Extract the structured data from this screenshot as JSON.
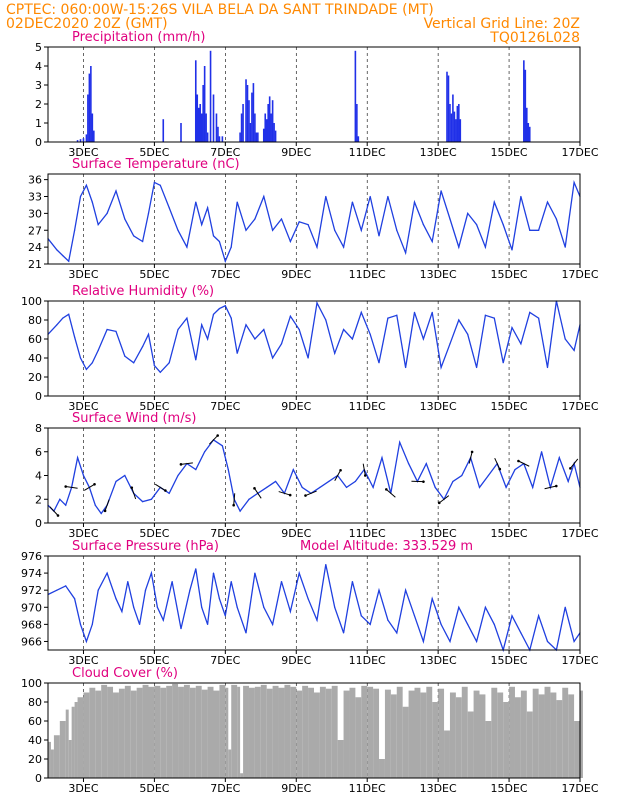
{
  "header": {
    "line1_left": "CPTEC:    060:00W-15:26S   VILA BELA DA SANT TRINDADE (MT)",
    "line2_left": "02DEC2020  20Z (GMT)",
    "line2_right": "Vertical Grid Line: 20Z",
    "line3_right": "TQ0126L028"
  },
  "colors": {
    "header_text": "#ff8800",
    "panel_title": "#e0007f",
    "series_line": "#2040e0",
    "precip_bars": "#2030e8",
    "cloud_fill": "#aaaaaa"
  },
  "x_axis": {
    "unit": "hours since start (02DEC 20Z)",
    "range": [
      0,
      360
    ],
    "tick_labels": [
      "3DEC",
      "5DEC",
      "7DEC",
      "9DEC",
      "11DEC",
      "13DEC",
      "15DEC",
      "17DEC"
    ],
    "tick_hours": [
      24,
      72,
      120,
      168,
      216,
      264,
      312,
      360
    ]
  },
  "chart_data": [
    {
      "type": "bar",
      "title": "Precipitation (mm/h)",
      "ylim": [
        0,
        5
      ],
      "yticks": [
        0,
        1,
        2,
        3,
        4,
        5
      ],
      "x": [
        20,
        22,
        24,
        26,
        27,
        28,
        29,
        30,
        31,
        78,
        90,
        100,
        101,
        102,
        103,
        104,
        105,
        106,
        107,
        108,
        110,
        112,
        114,
        115,
        116,
        118,
        130,
        131,
        132,
        134,
        135,
        136,
        137,
        138,
        139,
        140,
        141,
        142,
        146,
        147,
        148,
        149,
        150,
        151,
        152,
        153,
        154,
        208,
        209,
        210,
        270,
        271,
        272,
        273,
        274,
        275,
        276,
        277,
        278,
        279,
        322,
        323,
        324,
        325,
        326
      ],
      "values": [
        0.1,
        0.15,
        0.2,
        0.4,
        2.5,
        3.6,
        4.0,
        1.5,
        0.6,
        1.2,
        1.0,
        4.3,
        2.5,
        1.8,
        2.0,
        1.5,
        3.0,
        4.0,
        1.5,
        0.5,
        4.8,
        2.5,
        1.5,
        0.8,
        0.3,
        0.3,
        0.5,
        1.5,
        2.0,
        3.3,
        3.0,
        2.2,
        1.0,
        2.6,
        3.1,
        1.5,
        0.5,
        0.5,
        0.7,
        1.5,
        1.2,
        2.0,
        2.4,
        1.5,
        2.2,
        1.0,
        0.6,
        4.8,
        2.0,
        0.3,
        3.7,
        3.5,
        2.0,
        1.5,
        2.5,
        1.6,
        1.2,
        1.9,
        2.0,
        1.2,
        4.3,
        3.8,
        1.8,
        1.0,
        0.8
      ]
    },
    {
      "type": "line",
      "title": "Surface Temperature (nC)",
      "ylim": [
        21,
        37
      ],
      "yticks": [
        21,
        24,
        27,
        30,
        33,
        36
      ],
      "x": [
        0,
        6,
        10,
        14,
        18,
        22,
        26,
        30,
        34,
        40,
        46,
        52,
        58,
        64,
        68,
        72,
        76,
        82,
        88,
        94,
        100,
        104,
        108,
        112,
        116,
        120,
        124,
        128,
        134,
        140,
        146,
        152,
        158,
        164,
        170,
        176,
        182,
        188,
        194,
        200,
        206,
        212,
        218,
        224,
        230,
        236,
        242,
        248,
        254,
        260,
        266,
        272,
        278,
        284,
        290,
        296,
        302,
        308,
        314,
        320,
        326,
        332,
        338,
        344,
        350,
        356,
        360
      ],
      "values": [
        25.5,
        23.5,
        22.5,
        21.5,
        27,
        33,
        35,
        32,
        28,
        30,
        34,
        29,
        26,
        25,
        30,
        35.5,
        35,
        31,
        27,
        24,
        32,
        28,
        31,
        26,
        25,
        21.5,
        24,
        32,
        27,
        29,
        33,
        27,
        29,
        25,
        28.5,
        28,
        24,
        33,
        27,
        24,
        32,
        27,
        33,
        26,
        33,
        27,
        23,
        32,
        28,
        25,
        34,
        29,
        24,
        30,
        28,
        24,
        32,
        28,
        23.5,
        33,
        27,
        27,
        32,
        29,
        24,
        35.5,
        33
      ]
    },
    {
      "type": "line",
      "title": "Relative Humidity (%)",
      "ylim": [
        0,
        100
      ],
      "yticks": [
        0,
        20,
        40,
        60,
        80,
        100
      ],
      "x": [
        0,
        6,
        10,
        14,
        18,
        22,
        26,
        30,
        34,
        40,
        46,
        52,
        58,
        64,
        68,
        72,
        76,
        82,
        88,
        94,
        100,
        104,
        108,
        112,
        116,
        120,
        124,
        128,
        134,
        140,
        146,
        152,
        158,
        164,
        170,
        176,
        182,
        188,
        194,
        200,
        206,
        212,
        218,
        224,
        230,
        236,
        242,
        248,
        254,
        260,
        266,
        272,
        278,
        284,
        290,
        296,
        302,
        308,
        314,
        320,
        326,
        332,
        338,
        344,
        350,
        356,
        360
      ],
      "values": [
        65,
        75,
        82,
        86,
        62,
        40,
        28,
        35,
        48,
        70,
        68,
        42,
        35,
        52,
        65,
        32,
        25,
        35,
        70,
        82,
        38,
        75,
        60,
        86,
        92,
        95,
        82,
        45,
        75,
        60,
        70,
        40,
        55,
        84,
        70,
        40,
        98,
        80,
        45,
        70,
        60,
        88,
        65,
        35,
        82,
        85,
        30,
        88,
        60,
        88,
        30,
        55,
        80,
        65,
        30,
        85,
        82,
        35,
        72,
        55,
        88,
        82,
        30,
        100,
        60,
        48,
        75
      ]
    },
    {
      "type": "line",
      "title": "Surface Wind (m/s)",
      "ylim": [
        0,
        8
      ],
      "yticks": [
        0,
        2,
        4,
        6,
        8
      ],
      "x": [
        0,
        4,
        8,
        12,
        16,
        20,
        24,
        28,
        32,
        36,
        40,
        46,
        52,
        58,
        64,
        70,
        76,
        82,
        88,
        94,
        100,
        106,
        112,
        118,
        122,
        126,
        130,
        136,
        142,
        148,
        154,
        160,
        166,
        172,
        178,
        184,
        190,
        196,
        202,
        208,
        214,
        220,
        226,
        232,
        238,
        244,
        250,
        256,
        262,
        268,
        274,
        280,
        286,
        292,
        298,
        304,
        310,
        316,
        322,
        328,
        334,
        340,
        346,
        352,
        356,
        360
      ],
      "values": [
        1.5,
        1.0,
        2.0,
        1.5,
        3.0,
        5.5,
        4.0,
        3.0,
        1.5,
        0.8,
        1.5,
        3.5,
        4.0,
        2.5,
        1.8,
        2.0,
        3.0,
        2.5,
        4.0,
        5.0,
        4.5,
        6.0,
        7.0,
        6.5,
        4.5,
        2.0,
        1.0,
        2.0,
        2.5,
        3.0,
        3.5,
        2.5,
        4.5,
        3.0,
        2.5,
        3.0,
        3.5,
        4.0,
        3.0,
        3.5,
        4.5,
        3.0,
        5.5,
        2.5,
        6.8,
        5.0,
        3.5,
        5.0,
        3.0,
        2.0,
        3.5,
        4.0,
        5.5,
        3.0,
        4.0,
        5.0,
        3.0,
        4.5,
        5.0,
        3.0,
        6.0,
        3.0,
        5.5,
        3.5,
        5.0,
        3.0
      ]
    },
    {
      "type": "line",
      "title": "Surface Pressure (hPa)",
      "annotation": "Model Altitude: 333.529  m",
      "ylim": [
        965,
        976
      ],
      "yticks": [
        966,
        968,
        970,
        972,
        974,
        976
      ],
      "x": [
        0,
        6,
        12,
        18,
        22,
        26,
        30,
        34,
        40,
        46,
        50,
        54,
        58,
        62,
        66,
        70,
        74,
        78,
        84,
        90,
        96,
        100,
        104,
        108,
        112,
        116,
        120,
        124,
        128,
        134,
        140,
        146,
        152,
        158,
        164,
        170,
        176,
        182,
        188,
        194,
        200,
        206,
        212,
        218,
        224,
        230,
        236,
        242,
        248,
        254,
        260,
        266,
        272,
        278,
        284,
        290,
        296,
        302,
        308,
        314,
        320,
        326,
        332,
        338,
        344,
        350,
        356,
        360
      ],
      "values": [
        971.5,
        972,
        972.5,
        971,
        968,
        966,
        968,
        972,
        974,
        971,
        969.5,
        973,
        970,
        968,
        972,
        974,
        970,
        968.5,
        973,
        967.5,
        972,
        974.5,
        970,
        968,
        974,
        971,
        969,
        973,
        970,
        967,
        974,
        970,
        968,
        973,
        969.5,
        974,
        971,
        968.5,
        975,
        970,
        967,
        973,
        969,
        968,
        972,
        968.5,
        967,
        972,
        969,
        966,
        971,
        968,
        966,
        970,
        968,
        966,
        970,
        968,
        965,
        969,
        967,
        965,
        969,
        966,
        965,
        970,
        966,
        967
      ]
    },
    {
      "type": "area",
      "title": "Cloud Cover (%)",
      "ylim": [
        0,
        100
      ],
      "yticks": [
        0,
        20,
        40,
        60,
        80,
        100
      ],
      "x": [
        0,
        2,
        4,
        8,
        12,
        14,
        16,
        18,
        20,
        24,
        28,
        32,
        36,
        40,
        44,
        48,
        52,
        56,
        60,
        64,
        68,
        72,
        76,
        80,
        84,
        88,
        92,
        96,
        100,
        104,
        108,
        112,
        116,
        120,
        122,
        124,
        128,
        130,
        132,
        136,
        140,
        144,
        148,
        152,
        156,
        160,
        164,
        168,
        172,
        176,
        180,
        184,
        188,
        192,
        196,
        200,
        204,
        208,
        212,
        216,
        220,
        224,
        228,
        232,
        236,
        240,
        244,
        248,
        252,
        256,
        260,
        264,
        268,
        272,
        276,
        280,
        284,
        288,
        292,
        296,
        300,
        304,
        308,
        312,
        316,
        320,
        324,
        328,
        332,
        336,
        340,
        344,
        348,
        352,
        356,
        360
      ],
      "values": [
        38,
        30,
        45,
        60,
        72,
        40,
        75,
        80,
        85,
        90,
        95,
        92,
        98,
        96,
        90,
        94,
        97,
        92,
        95,
        98,
        96,
        97,
        95,
        97,
        99,
        96,
        98,
        95,
        97,
        93,
        96,
        92,
        98,
        95,
        30,
        98,
        96,
        5,
        97,
        95,
        96,
        98,
        94,
        97,
        95,
        98,
        96,
        92,
        97,
        95,
        90,
        96,
        94,
        97,
        40,
        92,
        95,
        85,
        97,
        96,
        94,
        20,
        93,
        88,
        96,
        75,
        92,
        95,
        90,
        96,
        80,
        94,
        50,
        90,
        85,
        96,
        70,
        92,
        88,
        60,
        95,
        90,
        80,
        96,
        85,
        92,
        70,
        94,
        88,
        96,
        90,
        82,
        95,
        88,
        60,
        92
      ]
    }
  ]
}
